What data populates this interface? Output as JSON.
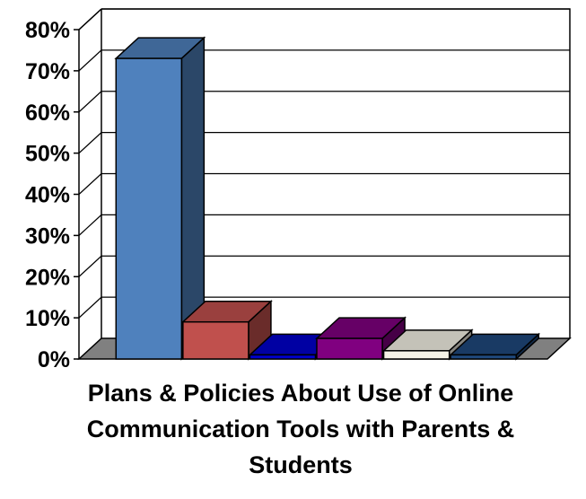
{
  "chart_data": {
    "type": "bar",
    "style": "3d-column",
    "xlabel": "Plans & Policies About Use of Online Communication Tools with Parents & Students",
    "ylabel": "",
    "title": "",
    "ylim": [
      0,
      80
    ],
    "yticks": [
      "0%",
      "10%",
      "20%",
      "30%",
      "40%",
      "50%",
      "60%",
      "70%",
      "80%"
    ],
    "grid": true,
    "legend": "none",
    "categories": [
      "",
      "",
      "",
      "",
      "",
      ""
    ],
    "values": [
      73,
      9,
      1,
      5,
      2,
      1
    ],
    "colors": [
      "#4f81bd",
      "#c0504d",
      "#0000cc",
      "#800080",
      "#f5f2e6",
      "#1f497d"
    ],
    "floor_color": "#808080"
  }
}
